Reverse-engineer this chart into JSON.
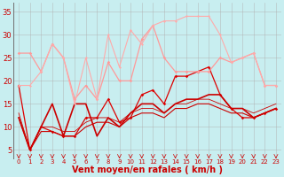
{
  "bg_color": "#c8eef0",
  "grid_color": "#b0b0b0",
  "xlabel": "Vent moyen/en rafales ( km/h )",
  "xlabel_color": "#cc0000",
  "xlabel_fontsize": 7,
  "tick_color": "#cc0000",
  "arrow_color": "#cc0000",
  "xlim": [
    -0.5,
    23.5
  ],
  "ylim": [
    3,
    37
  ],
  "yticks": [
    5,
    10,
    15,
    20,
    25,
    30,
    35
  ],
  "xticks": [
    0,
    1,
    2,
    3,
    4,
    5,
    6,
    7,
    8,
    9,
    10,
    11,
    12,
    13,
    14,
    15,
    16,
    17,
    18,
    19,
    20,
    21,
    22,
    23
  ],
  "series": [
    {
      "x": [
        0,
        1,
        2,
        3,
        4,
        5,
        6,
        7,
        8,
        9,
        10,
        11,
        12,
        13,
        14,
        15,
        16,
        17,
        18,
        19,
        20,
        21,
        22,
        23
      ],
      "y": [
        19,
        5,
        10,
        9,
        8,
        8,
        12,
        12,
        16,
        11,
        12,
        17,
        18,
        15,
        21,
        21,
        22,
        23,
        17,
        14,
        12,
        12,
        13,
        14
      ],
      "color": "#dd0000",
      "lw": 0.9,
      "marker": "D",
      "ms": 1.8
    },
    {
      "x": [
        0,
        1,
        2,
        3,
        4,
        5,
        6,
        7,
        8,
        9,
        10,
        11,
        12,
        13,
        14,
        15,
        16,
        17,
        18,
        19,
        20,
        21,
        22,
        23
      ],
      "y": [
        12,
        5,
        10,
        15,
        8,
        15,
        15,
        8,
        12,
        10,
        13,
        15,
        15,
        13,
        15,
        16,
        16,
        17,
        17,
        14,
        14,
        12,
        13,
        14
      ],
      "color": "#cc0000",
      "lw": 1.2,
      "marker": "none",
      "ms": 0
    },
    {
      "x": [
        0,
        1,
        2,
        3,
        4,
        5,
        6,
        7,
        8,
        9,
        10,
        11,
        12,
        13,
        14,
        15,
        16,
        17,
        18,
        19,
        20,
        21,
        22,
        23
      ],
      "y": [
        12,
        5,
        9,
        9,
        8,
        8,
        10,
        11,
        11,
        10,
        12,
        13,
        13,
        12,
        14,
        14,
        15,
        15,
        14,
        13,
        13,
        12,
        13,
        14
      ],
      "color": "#cc0000",
      "lw": 0.8,
      "marker": "none",
      "ms": 0
    },
    {
      "x": [
        0,
        1,
        2,
        3,
        4,
        5,
        6,
        7,
        8,
        9,
        10,
        11,
        12,
        13,
        14,
        15,
        16,
        17,
        18,
        19,
        20,
        21,
        22,
        23
      ],
      "y": [
        13,
        5,
        10,
        10,
        9,
        9,
        11,
        12,
        12,
        11,
        13,
        14,
        14,
        13,
        15,
        15,
        16,
        16,
        15,
        14,
        14,
        13,
        14,
        15
      ],
      "color": "#cc0000",
      "lw": 0.6,
      "marker": "none",
      "ms": 0
    },
    {
      "x": [
        0,
        1,
        2,
        3,
        4,
        5,
        6,
        7,
        8,
        9,
        10,
        11,
        12,
        13,
        14,
        15,
        16,
        17,
        18,
        19,
        20,
        21,
        22,
        23
      ],
      "y": [
        26,
        26,
        22,
        28,
        25,
        16,
        19,
        16,
        24,
        20,
        20,
        29,
        32,
        25,
        22,
        22,
        22,
        22,
        25,
        24,
        25,
        26,
        19,
        19
      ],
      "color": "#ff9999",
      "lw": 0.9,
      "marker": "D",
      "ms": 1.8
    },
    {
      "x": [
        0,
        1,
        2,
        3,
        4,
        5,
        6,
        7,
        8,
        9,
        10,
        11,
        12,
        13,
        14,
        15,
        16,
        17,
        18,
        19,
        20,
        21,
        22,
        23
      ],
      "y": [
        19,
        19,
        22,
        28,
        25,
        15,
        25,
        16,
        30,
        23,
        31,
        28,
        32,
        33,
        33,
        34,
        34,
        34,
        30,
        24,
        25,
        26,
        19,
        19
      ],
      "color": "#ffaaaa",
      "lw": 0.8,
      "marker": "D",
      "ms": 1.5
    }
  ]
}
